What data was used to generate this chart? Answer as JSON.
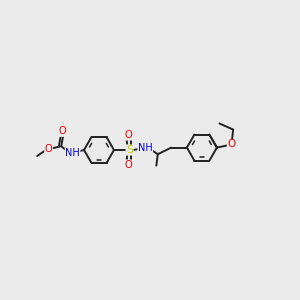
{
  "bg_color": "#ebebeb",
  "bond_color": "#222222",
  "bond_lw": 1.4,
  "inner_lw": 1.1,
  "atom_colors": {
    "O": "#e00000",
    "N": "#0000cc",
    "S": "#cccc00",
    "H": "#4a9090"
  },
  "figsize": [
    3.0,
    3.0
  ],
  "dpi": 100,
  "xlim": [
    0,
    10
  ],
  "ylim": [
    0,
    10
  ]
}
